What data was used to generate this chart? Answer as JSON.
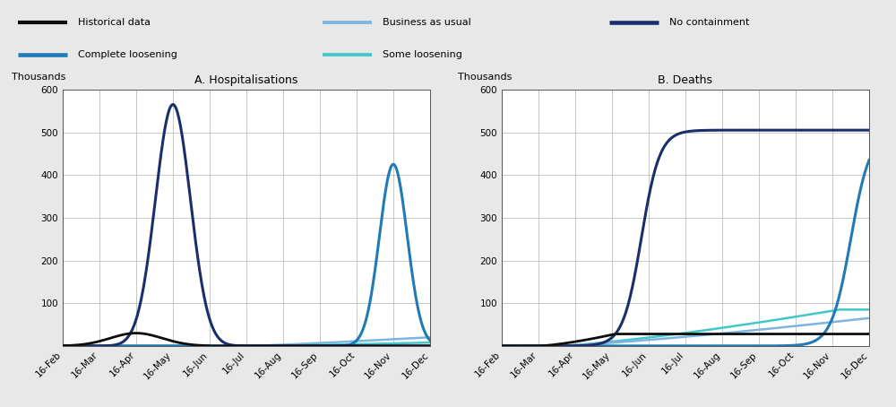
{
  "title_a": "A. Hospitalisations",
  "title_b": "B. Deaths",
  "ylabel": "Thousands",
  "ylim": [
    0,
    600
  ],
  "yticks": [
    0,
    100,
    200,
    300,
    400,
    500,
    600
  ],
  "x_labels": [
    "16-Feb",
    "16-Mar",
    "16-Apr",
    "16-May",
    "16-Jun",
    "16-Jul",
    "16-Aug",
    "16-Sep",
    "16-Oct",
    "16-Nov",
    "16-Dec"
  ],
  "colors": {
    "historical": "#0d0d0d",
    "no_containment": "#1a2e6c",
    "complete_loosening": "#1f7ab5",
    "business_as_usual": "#7eb4e0",
    "some_loosening": "#40c8c8"
  },
  "linewidths": {
    "historical": 2.0,
    "no_containment": 2.2,
    "complete_loosening": 2.2,
    "business_as_usual": 1.8,
    "some_loosening": 1.8
  },
  "legend_bg": "#d4d4d4",
  "fig_bg": "#e8e8e8",
  "plot_bg": "#ffffff",
  "grid_color": "#b0b0b0",
  "title_fontsize": 9,
  "tick_fontsize": 7.5,
  "ylabel_fontsize": 8
}
